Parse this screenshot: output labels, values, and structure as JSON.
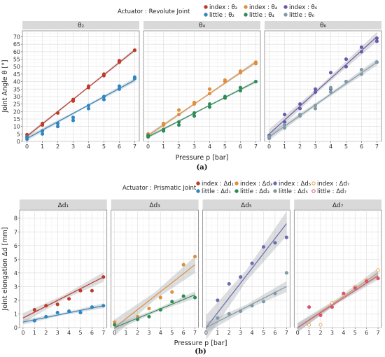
{
  "colors": {
    "index2": "#c0392b",
    "little2": "#2e86c1",
    "index4": "#e08e3c",
    "little4": "#2e8b57",
    "index6": "#6a5aa8",
    "little6": "#7f9aa6",
    "index_d1": "#c0392b",
    "little_d1": "#2e86c1",
    "index_d3": "#e08e3c",
    "little_d3": "#2e8b57",
    "index_d5": "#6a6ab0",
    "little_d5": "#7f9aa6",
    "index_d7": "#e6a23c",
    "little_d7": "#d9536f"
  },
  "chart_data": [
    {
      "type": "scatter",
      "caption": "(a)",
      "legend_title": "Actuator : Revolute Joint",
      "legend": [
        {
          "label": "index : θ₂",
          "color_key": "index2"
        },
        {
          "label": "index : θ₄",
          "color_key": "index4"
        },
        {
          "label": "index : θ₆",
          "color_key": "index6"
        },
        {
          "label": "little : θ₂",
          "color_key": "little2"
        },
        {
          "label": "little : θ₄",
          "color_key": "little4"
        },
        {
          "label": "little : θ₆",
          "color_key": "little6"
        }
      ],
      "ylabel": "Joint Angle θ [°]",
      "xlabel": "Pressure p [bar]",
      "xlim": [
        -0.3,
        7.3
      ],
      "ylim": [
        0,
        74
      ],
      "xticks": [
        "0",
        "1",
        "2",
        "3",
        "4",
        "5",
        "6",
        "7"
      ],
      "yticks": [
        "0",
        "5",
        "10",
        "15",
        "20",
        "25",
        "30",
        "35",
        "40",
        "45",
        "50",
        "55",
        "60",
        "65",
        "70"
      ],
      "panels": [
        {
          "strip": "θ₂",
          "series": [
            {
              "name": "index : θ₂",
              "color_key": "index2",
              "x": [
                0,
                0,
                1,
                1,
                2,
                3,
                3,
                4,
                4,
                5,
                5,
                6,
                6,
                7,
                7
              ],
              "y": [
                3,
                4.5,
                11,
                12,
                19,
                27,
                28,
                36,
                37,
                44,
                45,
                53,
                54,
                61,
                61
              ],
              "fit": [
                [
                  0,
                  3.5
                ],
                [
                  7,
                  61
                ]
              ],
              "band": 1.2
            },
            {
              "name": "little : θ₂",
              "color_key": "little2",
              "x": [
                0,
                0,
                1,
                1,
                2,
                2,
                3,
                3,
                4,
                4,
                5,
                5,
                6,
                6,
                7,
                7
              ],
              "y": [
                1.5,
                3,
                5,
                7,
                10,
                12,
                14,
                16,
                22,
                24,
                28,
                30,
                35,
                37,
                42,
                43
              ],
              "fit": [
                [
                  0,
                  2
                ],
                [
                  7,
                  41
                ]
              ],
              "band": 1.5
            }
          ]
        },
        {
          "strip": "θ₄",
          "series": [
            {
              "name": "index : θ₄",
              "color_key": "index4",
              "x": [
                0,
                0,
                1,
                1,
                2,
                2,
                3,
                3,
                4,
                4,
                5,
                5,
                6,
                6,
                7,
                7
              ],
              "y": [
                3.5,
                5,
                11,
                12,
                18,
                21,
                25,
                26,
                32,
                35,
                40,
                41,
                46,
                47,
                52,
                53
              ],
              "fit": [
                [
                  0,
                  4
                ],
                [
                  7,
                  53
                ]
              ],
              "band": 1.2
            },
            {
              "name": "little : θ₄",
              "color_key": "little4",
              "x": [
                0,
                0,
                1,
                1,
                2,
                2,
                3,
                3,
                4,
                4,
                5,
                5,
                6,
                6,
                7
              ],
              "y": [
                3,
                4,
                7,
                8,
                11,
                13,
                17,
                19,
                23,
                25,
                29,
                30,
                34,
                36,
                40
              ],
              "fit": [
                [
                  0,
                  3
                ],
                [
                  7,
                  40
                ]
              ],
              "band": 1.0
            }
          ]
        },
        {
          "strip": "θ₆",
          "series": [
            {
              "name": "index : θ₆",
              "color_key": "index6",
              "x": [
                0,
                0,
                1,
                1,
                2,
                2,
                3,
                3,
                4,
                4,
                5,
                5,
                6,
                6,
                7,
                7
              ],
              "y": [
                3,
                4,
                13,
                18,
                22,
                25,
                33,
                35,
                35,
                46,
                50,
                55,
                60,
                63,
                67,
                69
              ],
              "fit": [
                [
                  0,
                  5
                ],
                [
                  7,
                  70
                ]
              ],
              "band": 3.2
            },
            {
              "name": "little : θ₆",
              "color_key": "little6",
              "x": [
                0,
                0,
                1,
                1,
                2,
                2,
                3,
                3,
                4,
                4,
                5,
                5,
                6,
                6,
                7,
                7
              ],
              "y": [
                2,
                3,
                9,
                11,
                17,
                18,
                22,
                24,
                33,
                36,
                40,
                40,
                45,
                48,
                53,
                53
              ],
              "fit": [
                [
                  0,
                  3
                ],
                [
                  7,
                  53
                ]
              ],
              "band": 2.2
            }
          ]
        }
      ]
    },
    {
      "type": "scatter",
      "caption": "(b)",
      "legend_title": "Actuator : Prismatic Joint",
      "legend": [
        {
          "label": "index : Δd₁",
          "color_key": "index_d1"
        },
        {
          "label": "index : Δd₃",
          "color_key": "index_d3"
        },
        {
          "label": "index : Δd₅",
          "color_key": "index_d5"
        },
        {
          "label": "index : Δd₇",
          "color_key": "index_d7",
          "hollow": true
        },
        {
          "label": "little : Δd₁",
          "color_key": "little_d1"
        },
        {
          "label": "little : Δd₃",
          "color_key": "little_d3"
        },
        {
          "label": "little : Δd₅",
          "color_key": "little_d5"
        },
        {
          "label": "little : Δd₇",
          "color_key": "little_d7",
          "hollow": true
        }
      ],
      "ylabel": "Joint elongation Δd [mm]",
      "xlabel": "Pressure p [bar]",
      "xlim": [
        -0.3,
        7.3
      ],
      "ylim": [
        0,
        8.6
      ],
      "xticks": [
        "0",
        "1",
        "2",
        "3",
        "4",
        "5",
        "6",
        "7"
      ],
      "yticks": [
        "0",
        "1",
        "2",
        "3",
        "4",
        "5",
        "6",
        "7",
        "8"
      ],
      "panels": [
        {
          "strip": "Δd₁",
          "series": [
            {
              "name": "index : Δd₁",
              "color_key": "index_d1",
              "x": [
                1,
                2,
                3,
                4,
                5,
                6,
                7
              ],
              "y": [
                1.3,
                1.6,
                1.7,
                2.1,
                2.7,
                2.7,
                3.7
              ],
              "fit": [
                [
                  0,
                  0.7
                ],
                [
                  7,
                  3.7
                ]
              ],
              "band": 0.35
            },
            {
              "name": "little : Δd₁",
              "color_key": "little_d1",
              "x": [
                1,
                2,
                3,
                4,
                5,
                6,
                7
              ],
              "y": [
                0.5,
                0.8,
                1.1,
                1.2,
                1.1,
                1.5,
                1.6
              ],
              "fit": [
                [
                  0,
                  0.4
                ],
                [
                  7,
                  1.6
                ]
              ],
              "band": 0.18
            }
          ]
        },
        {
          "strip": "Δd₃",
          "series": [
            {
              "name": "index : Δd₃",
              "color_key": "index_d3",
              "x": [
                0,
                2,
                3,
                4,
                5,
                6,
                7
              ],
              "y": [
                0.4,
                0.8,
                1.4,
                2.2,
                2.6,
                4.6,
                5.2
              ],
              "fit": [
                [
                  0,
                  0
                ],
                [
                  7,
                  4.6
                ]
              ],
              "band": 0.6
            },
            {
              "name": "little : Δd₃",
              "color_key": "index_d3",
              "x": [
                0,
                2,
                3,
                4,
                5,
                6,
                7
              ],
              "y": [
                0.2,
                0.6,
                0.8,
                1.3,
                1.9,
                2.3,
                2.2
              ],
              "fit": [
                [
                  0,
                  0
                ],
                [
                  7,
                  2.4
                ]
              ],
              "band": 0.25,
              "color_override": "little_d3"
            }
          ]
        },
        {
          "strip": "Δd₅",
          "series": [
            {
              "name": "index : Δd₅",
              "color_key": "index_d5",
              "x": [
                1,
                2,
                3,
                4,
                5,
                6,
                7
              ],
              "y": [
                2.0,
                3.2,
                3.7,
                4.7,
                5.9,
                6.2,
                6.6
              ],
              "fit": [
                [
                  0,
                  0
                ],
                [
                  7,
                  7.6
                ]
              ],
              "band": 0.9
            },
            {
              "name": "little : Δd₅",
              "color_key": "little_d5",
              "x": [
                1,
                2,
                3,
                4,
                5,
                6,
                7
              ],
              "y": [
                0.7,
                1.0,
                1.2,
                1.6,
                1.9,
                2.5,
                4.0
              ],
              "fit": [
                [
                  0,
                  0
                ],
                [
                  7,
                  3.0
                ]
              ],
              "band": 0.4
            }
          ]
        },
        {
          "strip": "Δd₇",
          "series": [
            {
              "name": "index : Δd₇",
              "color_key": "index_d7",
              "hollow": true,
              "x": [
                1,
                2,
                3,
                4,
                5,
                6,
                7
              ],
              "y": [
                0.2,
                0.2,
                1.8,
                2.4,
                3.0,
                3.5,
                4.2
              ],
              "fit": [
                [
                  0,
                  0
                ],
                [
                  7,
                  4.0
                ]
              ],
              "band": 0.35
            },
            {
              "name": "little : Δd₇",
              "color_key": "little_d7",
              "x": [
                1,
                2,
                3,
                4,
                5,
                6,
                7
              ],
              "y": [
                1.5,
                0.9,
                1.5,
                2.5,
                2.9,
                3.4,
                3.6
              ],
              "fit": [
                [
                  0,
                  0
                ],
                [
                  7,
                  3.8
                ]
              ],
              "band": 0.3
            }
          ]
        }
      ]
    }
  ]
}
